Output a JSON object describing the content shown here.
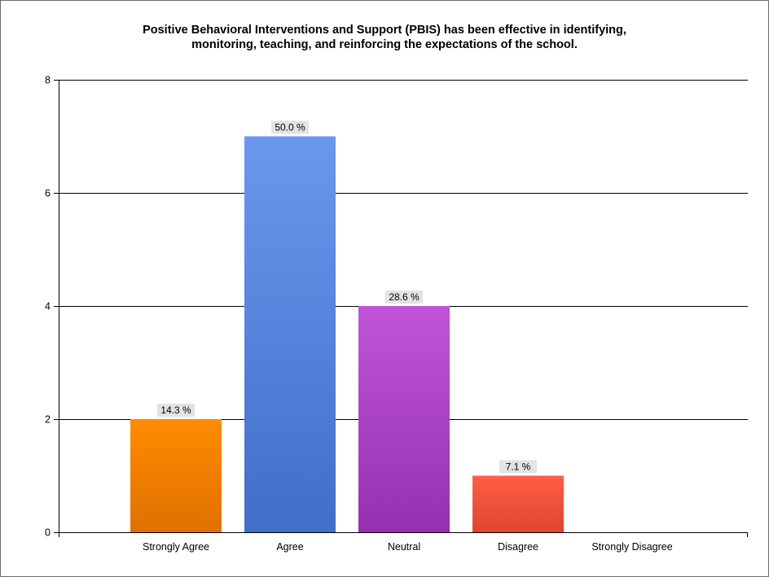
{
  "chart_data": {
    "type": "bar",
    "title_lines": [
      "Positive Behavioral Interventions and Support (PBIS) has been effective in identifying,",
      "monitoring, teaching, and reinforcing the expectations of the school."
    ],
    "categories": [
      "Strongly Agree",
      "Agree",
      "Neutral",
      "Disagree",
      "Strongly Disagree"
    ],
    "values": [
      2,
      7,
      4,
      1,
      0
    ],
    "data_labels": [
      "14.3 %",
      "50.0 %",
      "28.6 %",
      "7.1 %",
      ""
    ],
    "colors": [
      [
        "#ff8c00",
        "#e07000"
      ],
      [
        "#6a98ee",
        "#3f6fc8"
      ],
      [
        "#c055d8",
        "#9530b0"
      ],
      [
        "#ff5e45",
        "#e04430"
      ],
      [
        "#cccccc",
        "#999999"
      ]
    ],
    "ylim": [
      0,
      8
    ],
    "yticks": [
      0,
      2,
      4,
      6,
      8
    ],
    "grid": true,
    "xlabel": "",
    "ylabel": ""
  }
}
